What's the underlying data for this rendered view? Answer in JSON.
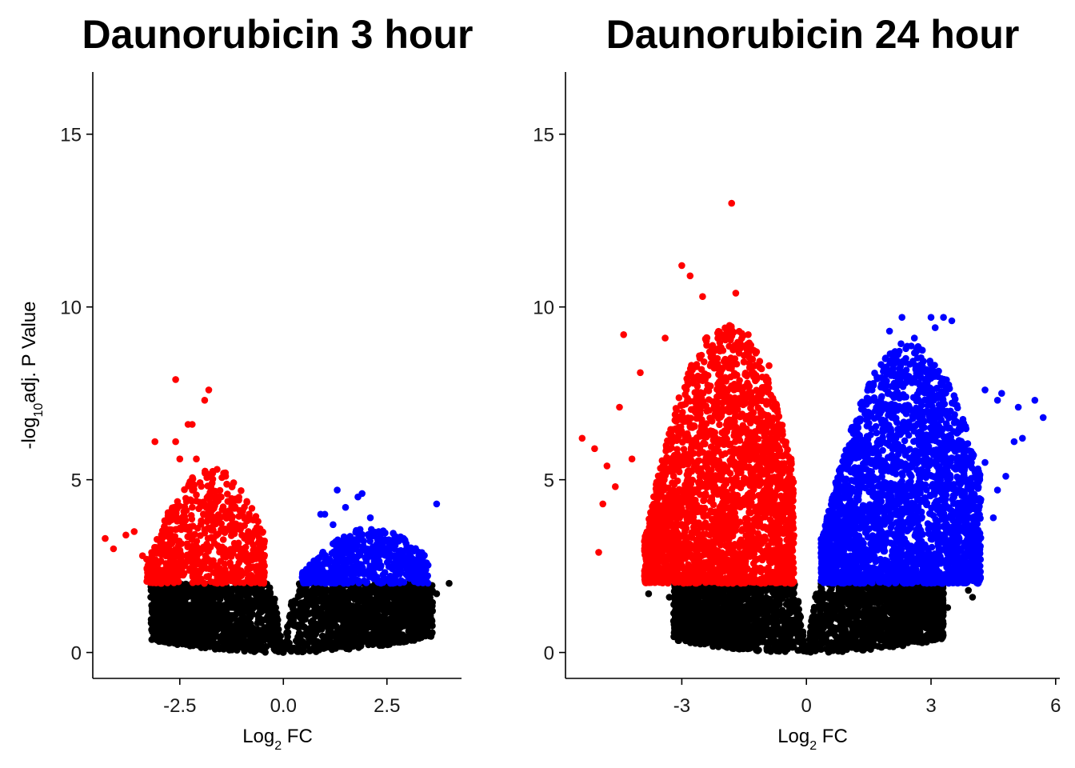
{
  "chart_data": [
    {
      "type": "scatter",
      "title": "Daunorubicin 3 hour",
      "xlabel": {
        "base": "Log",
        "sub": "2",
        "rest": " FC"
      },
      "ylabel": {
        "pre": "-log",
        "sub": "10",
        "rest": "adj. P Value"
      },
      "xlim": [
        -4.6,
        4.3
      ],
      "ylim": [
        -0.75,
        16.8
      ],
      "xticks": [
        -2.5,
        0.0,
        2.5
      ],
      "xtick_labels": [
        "-2.5",
        "0.0",
        "2.5"
      ],
      "yticks": [
        0,
        5,
        10,
        15
      ],
      "ytick_labels": [
        "0",
        "5",
        "10",
        "15"
      ],
      "significance_threshold": 2.0,
      "colors": {
        "down": "#ff0000",
        "up": "#0000ff",
        "ns": "#000000"
      },
      "cloud": {
        "down_x": [
          -3.3,
          -0.45
        ],
        "up_x": [
          0.45,
          3.5
        ],
        "down_max_y": 5.3,
        "up_max_y": 3.6,
        "ns_x": [
          -3.2,
          3.6
        ]
      },
      "series": [
        {
          "group": "down",
          "points": [
            [
              -4.3,
              3.3
            ],
            [
              -4.1,
              3.0
            ],
            [
              -3.8,
              3.4
            ],
            [
              -3.6,
              3.5
            ],
            [
              -3.4,
              2.8
            ],
            [
              -3.3,
              2.7
            ],
            [
              -3.1,
              6.1
            ],
            [
              -2.6,
              7.9
            ],
            [
              -2.6,
              6.1
            ],
            [
              -2.3,
              6.6
            ],
            [
              -2.2,
              6.6
            ],
            [
              -1.8,
              7.6
            ],
            [
              -1.9,
              7.3
            ],
            [
              -2.5,
              5.6
            ],
            [
              -2.1,
              5.6
            ],
            [
              -1.6,
              5.3
            ],
            [
              -1.4,
              5.2
            ],
            [
              -3.0,
              2.4
            ],
            [
              -2.9,
              3.1
            ],
            [
              -3.2,
              2.2
            ]
          ]
        },
        {
          "group": "up",
          "points": [
            [
              1.3,
              4.7
            ],
            [
              1.8,
              4.5
            ],
            [
              1.9,
              4.6
            ],
            [
              0.9,
              4.0
            ],
            [
              1.0,
              4.0
            ],
            [
              1.5,
              4.2
            ],
            [
              2.3,
              3.5
            ],
            [
              2.7,
              3.1
            ],
            [
              2.9,
              3.3
            ],
            [
              3.0,
              2.5
            ],
            [
              3.3,
              2.3
            ],
            [
              3.7,
              4.3
            ],
            [
              2.1,
              3.9
            ],
            [
              2.4,
              2.9
            ],
            [
              1.2,
              3.7
            ]
          ]
        },
        {
          "group": "ns",
          "points": [
            [
              3.4,
              1.8
            ],
            [
              3.7,
              1.7
            ],
            [
              3.6,
              1.2
            ],
            [
              3.3,
              1.0
            ],
            [
              4.0,
              2.0
            ],
            [
              3.5,
              1.4
            ],
            [
              -3.1,
              1.8
            ],
            [
              -3.2,
              1.6
            ]
          ]
        }
      ]
    },
    {
      "type": "scatter",
      "title": "Daunorubicin 24 hour",
      "xlabel": {
        "base": "Log",
        "sub": "2",
        "rest": " FC"
      },
      "ylabel": {
        "pre": "",
        "sub": "",
        "rest": ""
      },
      "xlim": [
        -5.8,
        6.1
      ],
      "ylim": [
        -0.75,
        16.8
      ],
      "xticks": [
        -3,
        0,
        3,
        6
      ],
      "xtick_labels": [
        "-3",
        "0",
        "3",
        "6"
      ],
      "yticks": [
        0,
        5,
        10,
        15
      ],
      "ytick_labels": [
        "0",
        "5",
        "10",
        "15"
      ],
      "significance_threshold": 2.0,
      "colors": {
        "down": "#ff0000",
        "up": "#0000ff",
        "ns": "#000000"
      },
      "cloud": {
        "down_x": [
          -3.9,
          -0.3
        ],
        "up_x": [
          0.35,
          4.2
        ],
        "down_max_y": 9.5,
        "up_max_y": 9.0,
        "ns_x": [
          -3.2,
          3.3
        ]
      },
      "series": [
        {
          "group": "down",
          "points": [
            [
              -1.8,
              13.0
            ],
            [
              -3.0,
              11.2
            ],
            [
              -2.8,
              10.9
            ],
            [
              -1.7,
              10.4
            ],
            [
              -2.5,
              10.3
            ],
            [
              -4.4,
              9.2
            ],
            [
              -5.4,
              6.2
            ],
            [
              -5.1,
              5.9
            ],
            [
              -4.8,
              5.4
            ],
            [
              -5.0,
              2.9
            ],
            [
              -4.6,
              4.8
            ],
            [
              -4.9,
              4.3
            ],
            [
              -4.0,
              8.1
            ],
            [
              -3.4,
              9.1
            ],
            [
              -4.5,
              7.1
            ],
            [
              -1.4,
              9.2
            ],
            [
              -1.2,
              8.7
            ],
            [
              -0.9,
              8.3
            ],
            [
              -4.2,
              5.6
            ],
            [
              -3.8,
              3.0
            ]
          ]
        },
        {
          "group": "up",
          "points": [
            [
              2.3,
              9.7
            ],
            [
              3.0,
              9.7
            ],
            [
              3.3,
              9.7
            ],
            [
              3.5,
              9.6
            ],
            [
              3.1,
              9.4
            ],
            [
              2.0,
              9.3
            ],
            [
              2.6,
              9.1
            ],
            [
              4.3,
              7.6
            ],
            [
              4.7,
              7.5
            ],
            [
              4.6,
              7.3
            ],
            [
              5.1,
              7.1
            ],
            [
              5.5,
              7.3
            ],
            [
              5.7,
              6.8
            ],
            [
              5.0,
              6.1
            ],
            [
              4.6,
              4.7
            ],
            [
              4.8,
              5.1
            ],
            [
              4.3,
              5.5
            ],
            [
              1.9,
              8.5
            ],
            [
              4.5,
              3.9
            ],
            [
              5.2,
              6.2
            ]
          ]
        },
        {
          "group": "ns",
          "points": [
            [
              -3.8,
              1.7
            ],
            [
              -3.3,
              1.6
            ],
            [
              -2.9,
              1.6
            ],
            [
              3.9,
              1.8
            ],
            [
              4.0,
              1.6
            ],
            [
              3.1,
              1.5
            ],
            [
              3.2,
              1.1
            ],
            [
              2.8,
              1.0
            ],
            [
              3.4,
              1.3
            ],
            [
              2.0,
              0.5
            ]
          ]
        }
      ]
    }
  ]
}
